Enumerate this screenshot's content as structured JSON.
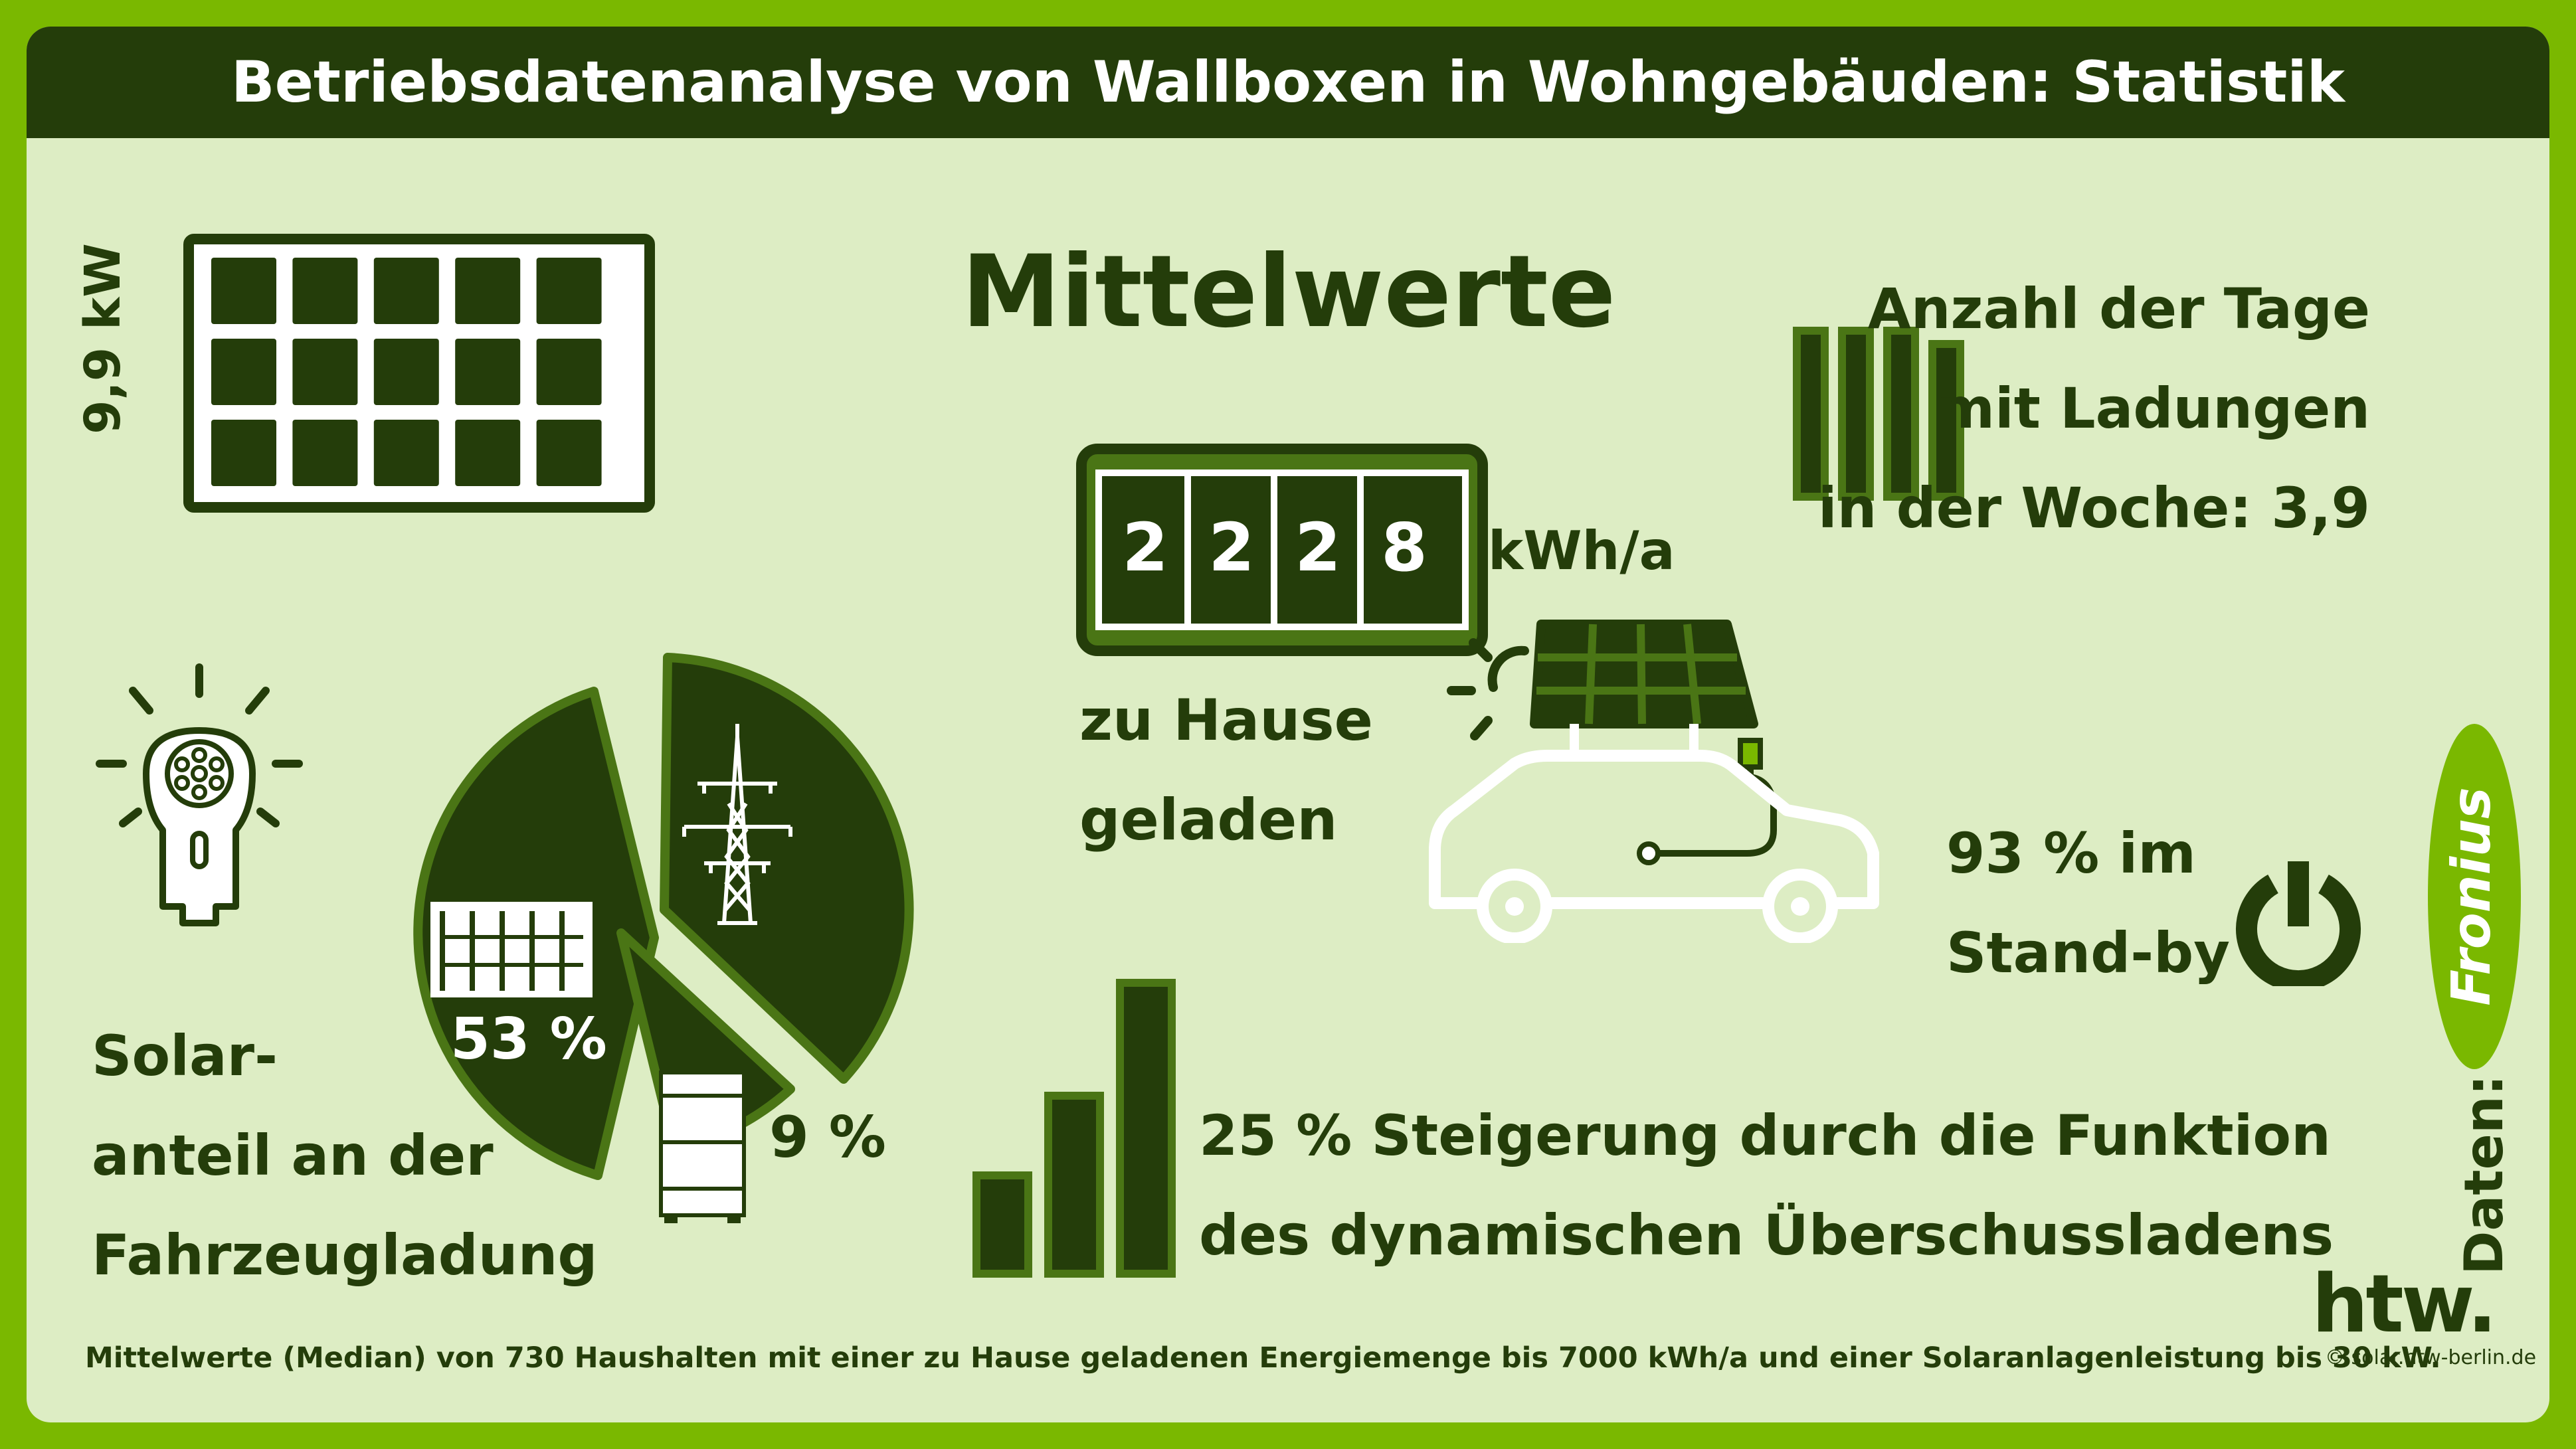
{
  "title": "Betriebsdatenanalyse von Wallboxen in Wohngebäuden: Statistik",
  "heading": "Mittelwerte",
  "pv_power": "9,9 kW",
  "energy": {
    "digits": [
      "2",
      "2",
      "2",
      "8"
    ],
    "unit": "kWh/a",
    "label_line1": "zu Hause",
    "label_line2": "geladen"
  },
  "charging_days": {
    "line1": "Anzahl der Tage",
    "line2": "mit Ladungen",
    "line3": "in der Woche: 3,9"
  },
  "standby": {
    "line1": "93 % im",
    "line2": "Stand-by"
  },
  "solar_share": {
    "pct_solar": "53 %",
    "pct_battery": "9 %",
    "label_line1": "Solar-",
    "label_line2": "anteil an der",
    "label_line3": "Fahrzeugladung"
  },
  "surplus": {
    "line1": "25 % Steigerung durch die Funktion",
    "line2": "des dynamischen Überschussladens"
  },
  "data_source": {
    "label": "Daten:",
    "brand": "Fronius"
  },
  "logo_text": "htw.",
  "copyright": "© solar.htw-berlin.de",
  "footnote": "Mittelwerte (Median) von 730 Haushalten mit einer zu Hause geladenen Energiemenge bis 7000 kWh/a und einer Solaranlagenleistung bis 30 kW.",
  "colors": {
    "dark_green": "#243d0a",
    "accent_green": "#7ab800",
    "background": "#ddedc4",
    "white": "#ffffff"
  },
  "icons": [
    "solar-panel-icon",
    "meter-display-icon",
    "calendar-bars-icon",
    "wallbox-plug-icon",
    "pie-chart-icon",
    "power-pylon-icon",
    "battery-storage-icon",
    "car-charging-icon",
    "sun-icon",
    "bar-steps-icon",
    "power-button-icon",
    "fronius-logo",
    "htw-logo"
  ]
}
